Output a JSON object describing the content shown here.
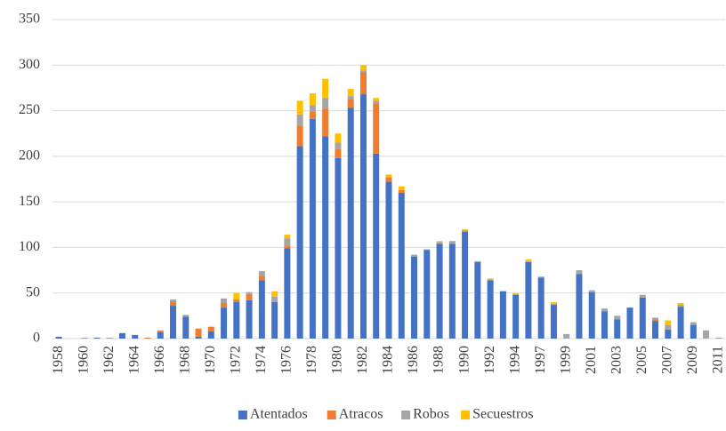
{
  "chart_data": {
    "type": "stacked_bar",
    "categories": [
      1958,
      null,
      1960,
      null,
      1962,
      null,
      1964,
      null,
      1966,
      null,
      1968,
      null,
      1970,
      null,
      1972,
      null,
      1974,
      null,
      1976,
      null,
      1978,
      null,
      1980,
      null,
      1982,
      null,
      1984,
      null,
      1986,
      null,
      1988,
      null,
      1990,
      null,
      1992,
      null,
      1994,
      null,
      1997,
      null,
      1999,
      null,
      2001,
      null,
      2003,
      null,
      2005,
      null,
      2007,
      null,
      2009,
      null,
      2011
    ],
    "series": [
      {
        "name": "Atentados",
        "color": "#4472c4",
        "values": [
          2,
          0,
          0,
          1,
          0,
          6,
          4,
          0,
          7,
          36,
          24,
          2,
          8,
          34,
          40,
          42,
          64,
          40,
          99,
          211,
          241,
          222,
          198,
          253,
          268,
          203,
          172,
          160,
          90,
          97,
          104,
          104,
          117,
          84,
          64,
          52,
          48,
          84,
          67,
          37,
          0,
          71,
          51,
          30,
          21,
          34,
          45,
          19,
          10,
          35,
          15,
          0,
          0
        ]
      },
      {
        "name": "Atracos",
        "color": "#ed7d31",
        "values": [
          0,
          0,
          0,
          0,
          0,
          0,
          0,
          1,
          2,
          5,
          0,
          9,
          5,
          5,
          3,
          7,
          5,
          0,
          3,
          22,
          8,
          30,
          10,
          10,
          24,
          55,
          5,
          3,
          0,
          0,
          0,
          0,
          0,
          0,
          0,
          0,
          0,
          0,
          0,
          0,
          0,
          0,
          0,
          0,
          0,
          0,
          0,
          2,
          0,
          0,
          0,
          0,
          0
        ]
      },
      {
        "name": "Robos",
        "color": "#a5a5a5",
        "values": [
          0,
          0,
          1,
          0,
          1,
          0,
          0,
          0,
          0,
          2,
          2,
          0,
          0,
          5,
          0,
          2,
          5,
          6,
          8,
          13,
          7,
          12,
          7,
          3,
          2,
          3,
          0,
          0,
          2,
          1,
          2,
          3,
          2,
          1,
          1,
          0,
          1,
          1,
          1,
          1,
          5,
          4,
          2,
          3,
          4,
          0,
          3,
          2,
          5,
          2,
          3,
          9,
          1
        ]
      },
      {
        "name": "Secuestros",
        "color": "#ffc000",
        "values": [
          0,
          0,
          0,
          0,
          0,
          0,
          0,
          0,
          0,
          0,
          0,
          0,
          0,
          0,
          7,
          0,
          0,
          6,
          4,
          15,
          13,
          21,
          10,
          8,
          6,
          3,
          3,
          4,
          0,
          0,
          1,
          0,
          1,
          0,
          1,
          0,
          1,
          2,
          0,
          2,
          0,
          0,
          0,
          0,
          0,
          0,
          0,
          0,
          5,
          2,
          0,
          0,
          0
        ]
      }
    ],
    "ylim": [
      0,
      350
    ],
    "yticks": [
      0,
      50,
      100,
      150,
      200,
      250,
      300,
      350
    ],
    "grid": true,
    "legend": "bottom"
  }
}
